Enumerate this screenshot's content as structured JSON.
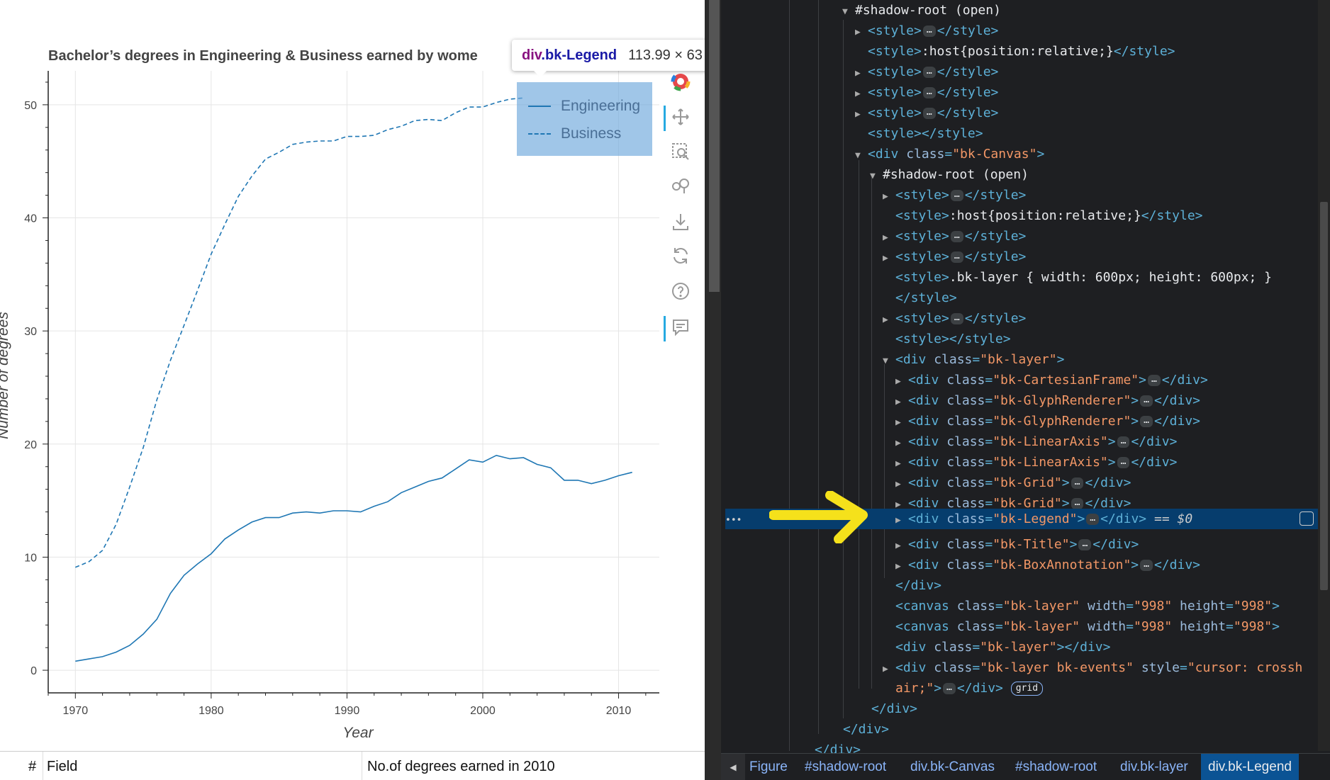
{
  "chart": {
    "title": "Bachelor’s degrees in Engineering & Business earned by wome",
    "xlabel": "Year",
    "ylabel": "Number of degrees",
    "legend": [
      "Engineering",
      "Business"
    ]
  },
  "chart_data": {
    "type": "line",
    "title": "Bachelor’s degrees in Engineering & Business earned by wome",
    "xlabel": "Year",
    "ylabel": "Number of degrees",
    "xlim": [
      1968,
      2013
    ],
    "ylim": [
      -2,
      53
    ],
    "xticks": [
      1970,
      1980,
      1990,
      2000,
      2010
    ],
    "yticks": [
      0,
      10,
      20,
      30,
      40,
      50
    ],
    "grid": true,
    "legend_position": "top-right",
    "series": [
      {
        "name": "Engineering",
        "style": "solid",
        "x": [
          1970,
          1971,
          1972,
          1973,
          1974,
          1975,
          1976,
          1977,
          1978,
          1979,
          1980,
          1981,
          1982,
          1983,
          1984,
          1985,
          1986,
          1987,
          1988,
          1989,
          1990,
          1991,
          1992,
          1993,
          1994,
          1995,
          1996,
          1997,
          1998,
          1999,
          2000,
          2001,
          2002,
          2003,
          2004,
          2005,
          2006,
          2007,
          2008,
          2009,
          2010,
          2011
        ],
        "values": [
          0.8,
          1.0,
          1.2,
          1.6,
          2.2,
          3.2,
          4.5,
          6.8,
          8.4,
          9.4,
          10.3,
          11.6,
          12.4,
          13.1,
          13.5,
          13.5,
          13.9,
          14.0,
          13.9,
          14.1,
          14.1,
          14.0,
          14.5,
          14.9,
          15.7,
          16.2,
          16.7,
          17.0,
          17.8,
          18.6,
          18.4,
          19.0,
          18.7,
          18.8,
          18.2,
          17.9,
          16.8,
          16.8,
          16.5,
          16.8,
          17.2,
          17.5
        ]
      },
      {
        "name": "Business",
        "style": "dashed",
        "x": [
          1970,
          1971,
          1972,
          1973,
          1974,
          1975,
          1976,
          1977,
          1978,
          1979,
          1980,
          1981,
          1982,
          1983,
          1984,
          1985,
          1986,
          1987,
          1988,
          1989,
          1990,
          1991,
          1992,
          1993,
          1994,
          1995,
          1996,
          1997,
          1998,
          1999,
          2000,
          2001,
          2002,
          2003
        ],
        "values": [
          9.1,
          9.6,
          10.6,
          12.9,
          16.2,
          19.7,
          23.9,
          27.4,
          30.5,
          33.6,
          36.8,
          39.4,
          41.9,
          43.7,
          45.2,
          45.8,
          46.5,
          46.7,
          46.8,
          46.8,
          47.2,
          47.2,
          47.3,
          47.8,
          48.1,
          48.6,
          48.7,
          48.6,
          49.3,
          49.8,
          49.8,
          50.2,
          50.5,
          50.6
        ]
      }
    ]
  },
  "tooltip": {
    "tag": "div",
    "cls": ".bk-Legend",
    "size": "113.99 × 63"
  },
  "toolbar": {
    "items": [
      "bokeh-logo-icon",
      "pan-icon",
      "box-zoom-icon",
      "wheel-zoom-icon",
      "save-icon",
      "reset-icon",
      "help-icon",
      "hover-icon"
    ]
  },
  "table": {
    "col_hash": "#",
    "col_field": "Field",
    "col_degrees": "No.of degrees earned in 2010"
  },
  "dom": {
    "sr_label": "#shadow-root",
    "sr_mode": "(open)",
    "style_open": "<style>",
    "style_close": "</style>",
    "host_rule": ":host{position:relative;}",
    "layer_rule": ".bk-layer { width: 600px; height: 600px; }",
    "div_open": "<div ",
    "div_close": "</div>",
    "canvas_open": "<canvas ",
    "class_attr": "class",
    "width_attr": "width",
    "height_attr": "height",
    "style_attr": "style",
    "bk_canvas": "\"bk-Canvas\"",
    "bk_layer": "\"bk-layer\"",
    "bk_cartesian": "\"bk-CartesianFrame\"",
    "bk_glyph": "\"bk-GlyphRenderer\"",
    "bk_linear": "\"bk-LinearAxis\"",
    "bk_grid": "\"bk-Grid\"",
    "bk_legend": "\"bk-Legend\"",
    "bk_title": "\"bk-Title\"",
    "bk_box": "\"bk-BoxAnnotation\"",
    "bk_events": "\"bk-layer bk-events\"",
    "dim_998": "\"998\"",
    "cursor_a": "\"cursor: crossh",
    "cursor_b": "air;\"",
    "eq": "== $0",
    "grid_badge": "grid",
    "ellipsis": "…",
    "gutter_dots": "•••"
  },
  "breadcrumbs": [
    "Figure",
    "#shadow-root",
    "div.bk-Canvas",
    "#shadow-root",
    "div.bk-layer",
    "div.bk-Legend"
  ]
}
